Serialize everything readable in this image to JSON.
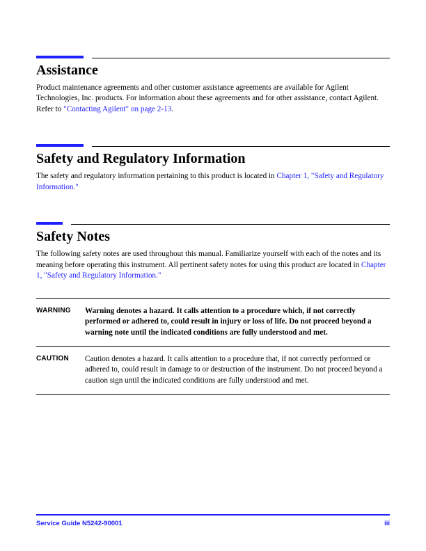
{
  "accent_color": "#2020ff",
  "sections": {
    "assistance": {
      "accent_width": 68,
      "title": "Assistance",
      "body_pre": "Product maintenance agreements and other customer assistance agreements are available for Agilent Technologies, Inc. products. For information about these agreements and for other assistance, contact Agilent. Refer to ",
      "link": "\"Contacting Agilent\" on page 2-13",
      "body_post": "."
    },
    "safety_reg": {
      "accent_width": 68,
      "title": "Safety and Regulatory Information",
      "body_pre": "The safety and regulatory information pertaining to this product is located in ",
      "link": "Chapter 1, \"Safety and Regulatory Information.\"",
      "body_post": ""
    },
    "safety_notes": {
      "accent_width": 38,
      "title": "Safety Notes",
      "body_pre": "The following safety notes are used throughout this manual. Familiarize yourself with each of the notes and its meaning before operating this instrument. All pertinent safety notes for using this product are located in ",
      "link": "Chapter 1, \"Safety and Regulatory Information.\"",
      "body_post": ""
    }
  },
  "notes": {
    "warning": {
      "label": "WARNING",
      "text": "Warning denotes a hazard. It calls attention to a procedure which, if not correctly performed or adhered to, could result in injury or loss of life. Do not proceed beyond a warning note until the indicated conditions are fully understood and met."
    },
    "caution": {
      "label": "CAUTION",
      "text": "Caution denotes a hazard. It calls attention to a procedure that, if not correctly performed or adhered to, could result in damage to or destruction of the instrument. Do not proceed beyond a caution sign until the indicated conditions are fully understood and met."
    }
  },
  "footer": {
    "left": "Service Guide  N5242-90001",
    "right": "iii"
  }
}
